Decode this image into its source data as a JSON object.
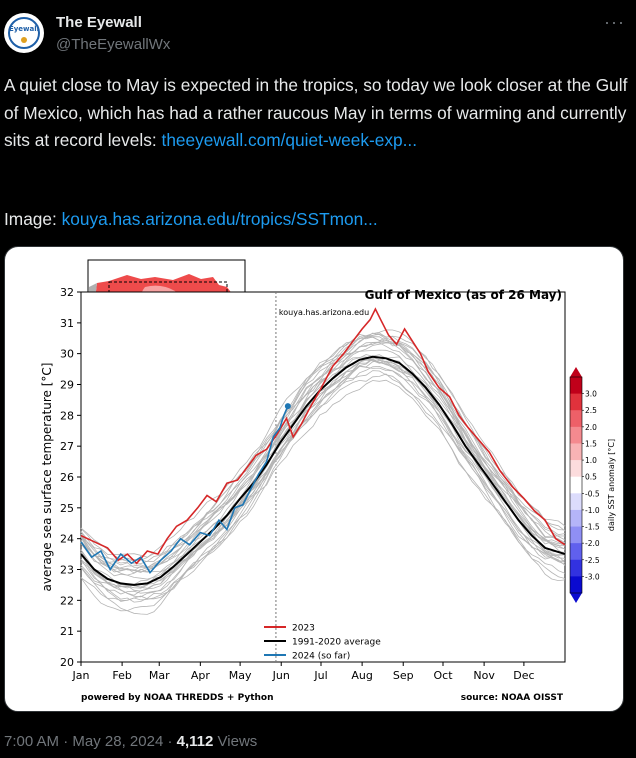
{
  "author": {
    "name": "The Eyewall",
    "handle": "@TheEyewallWx",
    "avatar_text": "Eyewall"
  },
  "more_icon": "more-dots-icon",
  "tweet": {
    "text": "A quiet close to May is expected in the tropics, so today we look closer at the Gulf of Mexico, which has had a rather raucous May in terms of warming and currently sits at record levels: ",
    "link1": "theeyewall.com/quiet-week-exp...",
    "image_label": "Image: ",
    "link2": "kouya.has.arizona.edu/tropics/SSTmon..."
  },
  "meta": {
    "time": "7:00 AM",
    "date": "May 28, 2024",
    "views_count": "4,112",
    "views_label": "Views"
  },
  "chart_data": {
    "type": "line",
    "title": "Gulf of Mexico (as of 26 May)",
    "ylabel": "average sea surface temperature [°C]",
    "xlabel": "",
    "ylim": [
      20,
      32
    ],
    "yticks": [
      20,
      21,
      22,
      23,
      24,
      25,
      26,
      27,
      28,
      29,
      30,
      31,
      32
    ],
    "x_tick_labels": [
      "Jan",
      "Feb",
      "Mar",
      "Apr",
      "May",
      "Jun",
      "Jul",
      "Aug",
      "Sep",
      "Oct",
      "Nov",
      "Dec"
    ],
    "marker_label": "kouya.has.arizona.edu",
    "footer_left": "powered by NOAA THREDDS + Python",
    "footer_right": "source: NOAA OISST",
    "colorbar": {
      "label": "daily SST anomaly [°C]",
      "ticks": [
        "3.0",
        "2.5",
        "2.0",
        "1.5",
        "1.0",
        "0.5",
        "-0.5",
        "-1.0",
        "-1.5",
        "-2.0",
        "-2.5",
        "-3.0"
      ]
    },
    "legend": [
      {
        "name": "2023",
        "color": "#d62728"
      },
      {
        "name": "1991-2020 average",
        "color": "#000000"
      },
      {
        "name": "2024 (so far)",
        "color": "#1f77b4"
      }
    ],
    "series": [
      {
        "name": "1991-2020 average",
        "color": "#000000",
        "points": [
          [
            0,
            23.5
          ],
          [
            10,
            23.0
          ],
          [
            20,
            22.7
          ],
          [
            30,
            22.55
          ],
          [
            40,
            22.5
          ],
          [
            50,
            22.55
          ],
          [
            60,
            22.75
          ],
          [
            70,
            23.1
          ],
          [
            80,
            23.5
          ],
          [
            90,
            23.9
          ],
          [
            100,
            24.3
          ],
          [
            110,
            24.75
          ],
          [
            120,
            25.3
          ],
          [
            130,
            25.8
          ],
          [
            140,
            26.4
          ],
          [
            150,
            27.1
          ],
          [
            160,
            27.7
          ],
          [
            170,
            28.3
          ],
          [
            180,
            28.8
          ],
          [
            190,
            29.2
          ],
          [
            200,
            29.55
          ],
          [
            210,
            29.8
          ],
          [
            220,
            29.9
          ],
          [
            230,
            29.85
          ],
          [
            240,
            29.7
          ],
          [
            250,
            29.35
          ],
          [
            260,
            28.9
          ],
          [
            270,
            28.35
          ],
          [
            280,
            27.7
          ],
          [
            290,
            27.0
          ],
          [
            300,
            26.4
          ],
          [
            310,
            25.8
          ],
          [
            320,
            25.2
          ],
          [
            330,
            24.6
          ],
          [
            340,
            24.1
          ],
          [
            350,
            23.7
          ],
          [
            365,
            23.5
          ]
        ]
      },
      {
        "name": "2023",
        "color": "#d62728",
        "points": [
          [
            0,
            24.1
          ],
          [
            10,
            23.9
          ],
          [
            20,
            23.7
          ],
          [
            28,
            23.3
          ],
          [
            35,
            23.5
          ],
          [
            42,
            23.2
          ],
          [
            50,
            23.6
          ],
          [
            58,
            23.5
          ],
          [
            65,
            24.0
          ],
          [
            72,
            24.4
          ],
          [
            80,
            24.6
          ],
          [
            88,
            25.0
          ],
          [
            95,
            25.4
          ],
          [
            102,
            25.2
          ],
          [
            110,
            25.8
          ],
          [
            118,
            25.9
          ],
          [
            125,
            26.3
          ],
          [
            132,
            26.7
          ],
          [
            140,
            26.9
          ],
          [
            148,
            27.4
          ],
          [
            155,
            27.9
          ],
          [
            160,
            27.3
          ],
          [
            166,
            27.7
          ],
          [
            172,
            28.2
          ],
          [
            180,
            28.8
          ],
          [
            190,
            29.6
          ],
          [
            198,
            30.0
          ],
          [
            205,
            30.4
          ],
          [
            212,
            30.8
          ],
          [
            218,
            31.1
          ],
          [
            222,
            31.45
          ],
          [
            226,
            31.1
          ],
          [
            232,
            30.6
          ],
          [
            238,
            30.3
          ],
          [
            244,
            30.8
          ],
          [
            250,
            30.4
          ],
          [
            256,
            30.0
          ],
          [
            262,
            29.4
          ],
          [
            270,
            28.9
          ],
          [
            278,
            28.6
          ],
          [
            285,
            28.0
          ],
          [
            292,
            27.6
          ],
          [
            300,
            27.2
          ],
          [
            308,
            26.8
          ],
          [
            316,
            26.2
          ],
          [
            325,
            25.7
          ],
          [
            334,
            25.3
          ],
          [
            342,
            24.9
          ],
          [
            350,
            24.6
          ],
          [
            358,
            24.0
          ],
          [
            365,
            23.8
          ]
        ]
      },
      {
        "name": "2024 (so far)",
        "color": "#1f77b4",
        "points": [
          [
            0,
            23.9
          ],
          [
            8,
            23.4
          ],
          [
            15,
            23.6
          ],
          [
            22,
            23.0
          ],
          [
            30,
            23.5
          ],
          [
            38,
            23.2
          ],
          [
            45,
            23.4
          ],
          [
            52,
            22.9
          ],
          [
            60,
            23.3
          ],
          [
            68,
            23.6
          ],
          [
            75,
            24.0
          ],
          [
            82,
            23.8
          ],
          [
            90,
            24.2
          ],
          [
            97,
            24.1
          ],
          [
            104,
            24.6
          ],
          [
            110,
            24.3
          ],
          [
            116,
            25.0
          ],
          [
            122,
            25.1
          ],
          [
            128,
            25.6
          ],
          [
            134,
            26.1
          ],
          [
            140,
            26.5
          ],
          [
            145,
            27.3
          ],
          [
            150,
            27.6
          ],
          [
            153,
            28.0
          ],
          [
            156,
            28.3
          ]
        ]
      }
    ],
    "inset_map": {
      "description_label": ""
    }
  }
}
